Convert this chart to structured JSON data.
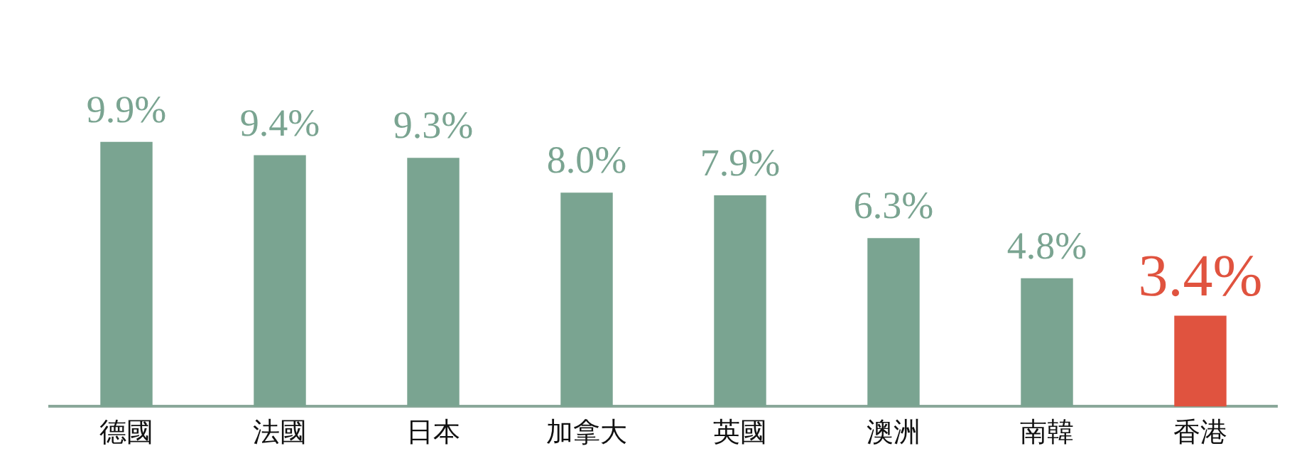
{
  "chart_data": {
    "type": "bar",
    "categories": [
      "德國",
      "法國",
      "日本",
      "加拿大",
      "英國",
      "澳洲",
      "南韓",
      "香港"
    ],
    "values": [
      9.9,
      9.4,
      9.3,
      8.0,
      7.9,
      6.3,
      4.8,
      3.4
    ],
    "colors": [
      "#7aa491",
      "#7aa491",
      "#7aa491",
      "#7aa491",
      "#7aa491",
      "#7aa491",
      "#7aa491",
      "#e0533f"
    ],
    "value_labels": [
      "9.9%",
      "9.4%",
      "9.3%",
      "8.0%",
      "7.9%",
      "6.3%",
      "4.8%",
      "3.4%"
    ],
    "grid": false,
    "legend": false
  }
}
